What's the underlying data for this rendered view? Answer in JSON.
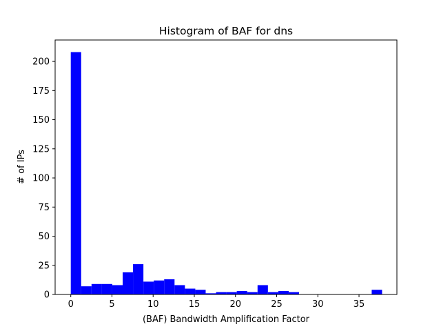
{
  "chart_data": {
    "type": "bar",
    "title": "Histogram of BAF for dns",
    "xlabel": "(BAF) Bandwidth Amplification Factor",
    "ylabel": "# of IPs",
    "xlim": [
      -1.9,
      39.6
    ],
    "ylim": [
      0,
      218.4
    ],
    "xticks": [
      0,
      5,
      10,
      15,
      20,
      25,
      30,
      35
    ],
    "yticks": [
      0,
      25,
      50,
      75,
      100,
      125,
      150,
      175,
      200
    ],
    "grid": false,
    "legend": "none",
    "bar_color": "#0000ff",
    "bin_edges": [
      0,
      1.26,
      2.52,
      3.78,
      5.04,
      6.3,
      7.56,
      8.82,
      10.08,
      11.34,
      12.6,
      13.86,
      15.12,
      16.38,
      17.64,
      18.9,
      20.16,
      21.42,
      22.68,
      23.94,
      25.2,
      26.46,
      27.72,
      28.98,
      30.24,
      31.5,
      32.76,
      34.02,
      35.28,
      36.54,
      37.8
    ],
    "values": [
      208,
      7,
      9,
      9,
      8,
      19,
      26,
      11,
      12,
      13,
      8,
      5,
      4,
      1,
      2,
      2,
      3,
      2,
      8,
      2,
      3,
      2,
      0,
      0,
      0,
      0,
      0,
      0,
      0,
      4
    ]
  }
}
